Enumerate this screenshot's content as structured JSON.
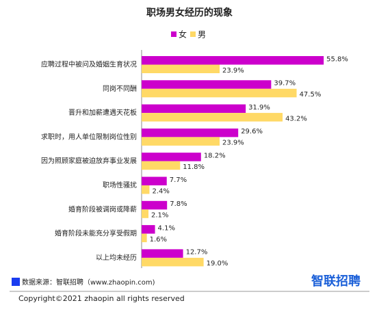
{
  "chart_data": {
    "type": "bar",
    "orientation": "horizontal",
    "title": "职场男女经历的现象",
    "categories": [
      "应聘过程中被问及婚姻生育状况",
      "同岗不同酬",
      "晋升和加薪遭遇天花板",
      "求职时，用人单位限制岗位性别",
      "因为照顾家庭被迫放弃事业发展",
      "职场性骚扰",
      "婚育阶段被调岗或降薪",
      "婚育阶段未能充分享受假期",
      "以上均未经历"
    ],
    "series": [
      {
        "name": "女",
        "color": "#cc00cc",
        "values": [
          55.8,
          39.7,
          31.9,
          29.6,
          18.2,
          7.7,
          7.8,
          4.1,
          12.7
        ],
        "value_labels": [
          "55.8%",
          "39.7%",
          "31.9%",
          "29.6%",
          "18.2%",
          "7.7%",
          "7.8%",
          "4.1%",
          "12.7%"
        ]
      },
      {
        "name": "男",
        "color": "#ffd966",
        "values": [
          23.9,
          47.5,
          43.2,
          23.9,
          11.8,
          2.4,
          2.1,
          1.6,
          19.0
        ],
        "value_labels": [
          "23.9%",
          "47.5%",
          "43.2%",
          "23.9%",
          "11.8%",
          "2.4%",
          "2.1%",
          "1.6%",
          "19.0%"
        ]
      }
    ],
    "legend": "top"
  },
  "footer": {
    "source": "数据来源：智联招聘（www.zhaopin.com)",
    "logo": "智联招聘",
    "copyright": "Copyright©2021 zhaopin all rights reserved"
  }
}
